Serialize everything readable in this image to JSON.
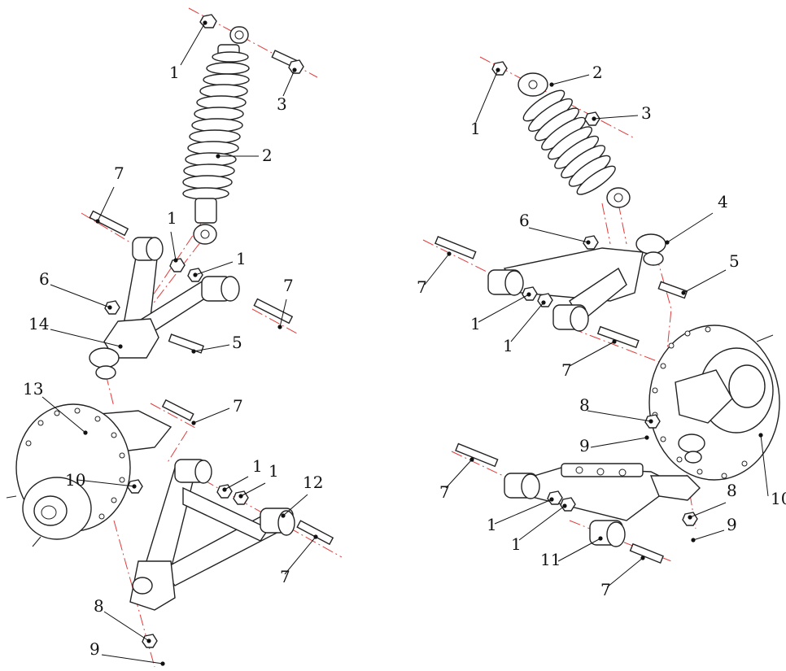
{
  "callouts": {
    "left": [
      {
        "id": "l1a",
        "text": "1"
      },
      {
        "id": "l3",
        "text": "3"
      },
      {
        "id": "l2",
        "text": "2"
      },
      {
        "id": "l7a",
        "text": "7"
      },
      {
        "id": "l1b",
        "text": "1"
      },
      {
        "id": "l1c",
        "text": "1"
      },
      {
        "id": "l6",
        "text": "6"
      },
      {
        "id": "l7b",
        "text": "7"
      },
      {
        "id": "l14",
        "text": "14"
      },
      {
        "id": "l5",
        "text": "5"
      },
      {
        "id": "l13",
        "text": "13"
      },
      {
        "id": "l7c",
        "text": "7"
      },
      {
        "id": "l10",
        "text": "10"
      },
      {
        "id": "l1d",
        "text": "1"
      },
      {
        "id": "l1e",
        "text": "1"
      },
      {
        "id": "l12",
        "text": "12"
      },
      {
        "id": "l7d",
        "text": "7"
      },
      {
        "id": "l8",
        "text": "8"
      },
      {
        "id": "l9",
        "text": "9"
      }
    ],
    "right": [
      {
        "id": "r2",
        "text": "2"
      },
      {
        "id": "r1a",
        "text": "1"
      },
      {
        "id": "r3",
        "text": "3"
      },
      {
        "id": "r4",
        "text": "4"
      },
      {
        "id": "r6",
        "text": "6"
      },
      {
        "id": "r5",
        "text": "5"
      },
      {
        "id": "r7a",
        "text": "7"
      },
      {
        "id": "r1b",
        "text": "1"
      },
      {
        "id": "r1c",
        "text": "1"
      },
      {
        "id": "r7b",
        "text": "7"
      },
      {
        "id": "r8a",
        "text": "8"
      },
      {
        "id": "r9a",
        "text": "9"
      },
      {
        "id": "r10",
        "text": "10"
      },
      {
        "id": "r7c",
        "text": "7"
      },
      {
        "id": "r8b",
        "text": "8"
      },
      {
        "id": "r9b",
        "text": "9"
      },
      {
        "id": "r1d",
        "text": "1"
      },
      {
        "id": "r1e",
        "text": "1"
      },
      {
        "id": "r11",
        "text": "11"
      },
      {
        "id": "r7d",
        "text": "7"
      }
    ]
  }
}
